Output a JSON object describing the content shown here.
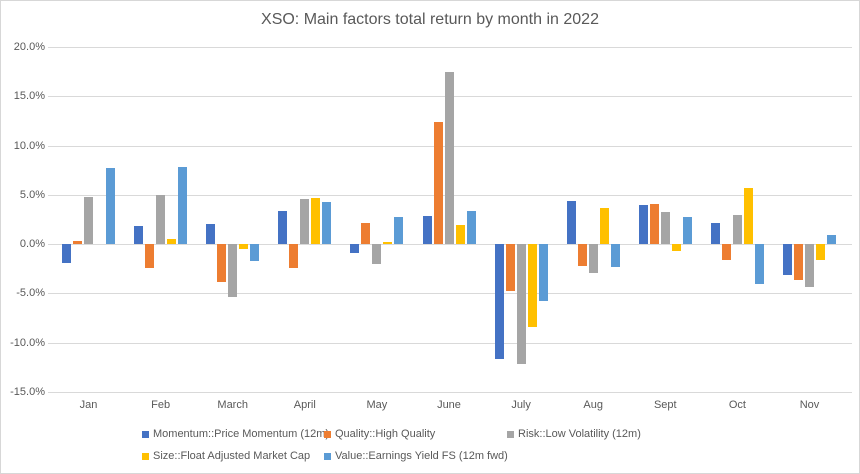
{
  "chart_data": {
    "type": "bar",
    "title": "XSO: Main factors total return by month in 2022",
    "categories": [
      "Jan",
      "Feb",
      "March",
      "April",
      "May",
      "June",
      "July",
      "Aug",
      "Sept",
      "Oct",
      "Nov"
    ],
    "series": [
      {
        "name": "Momentum::Price Momentum (12m)",
        "color": "#4472C4",
        "values": [
          -1.9,
          1.8,
          2.0,
          3.4,
          -0.9,
          2.9,
          -11.7,
          4.4,
          4.0,
          2.2,
          -3.1
        ]
      },
      {
        "name": "Quality::High Quality",
        "color": "#ED7D31",
        "values": [
          0.3,
          -2.4,
          -3.8,
          -2.4,
          2.2,
          12.4,
          -4.8,
          -2.2,
          4.1,
          -1.6,
          -3.6
        ]
      },
      {
        "name": "Risk::Low Volatility (12m)",
        "color": "#A5A5A5",
        "values": [
          4.8,
          5.0,
          -5.4,
          4.6,
          -2.0,
          17.5,
          -12.2,
          -2.9,
          3.3,
          3.0,
          -4.4
        ]
      },
      {
        "name": "Size::Float Adjusted Market Cap",
        "color": "#FFC000",
        "values": [
          0.0,
          0.5,
          -0.5,
          4.7,
          0.2,
          1.9,
          -8.4,
          3.7,
          -0.7,
          5.7,
          -1.6
        ]
      },
      {
        "name": "Value::Earnings Yield FS (12m fwd)",
        "color": "#5B9BD5",
        "values": [
          7.7,
          7.8,
          -1.7,
          4.3,
          2.8,
          3.4,
          -5.8,
          -2.3,
          2.8,
          -4.1,
          0.9
        ]
      }
    ],
    "ylim": [
      -15,
      20
    ],
    "ytick_step": 5,
    "ytick_labels": [
      "20.0%",
      "15.0%",
      "10.0%",
      "5.0%",
      "0.0%",
      "-5.0%",
      "-10.0%",
      "-15.0%"
    ],
    "grid": true,
    "legend_position": "bottom",
    "unit": "percent"
  },
  "colors": {
    "gridline": "#D9D9D9",
    "axis_text": "#595959",
    "title_text": "#595959",
    "border": "#D7D7D7",
    "background": "#FFFFFF"
  }
}
